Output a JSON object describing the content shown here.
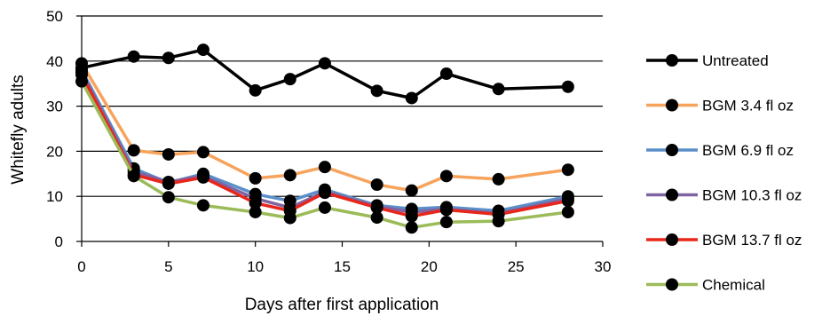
{
  "chart_data": {
    "type": "line",
    "xlabel": "Days after first application",
    "ylabel": "Whitefly adults",
    "xlim": [
      0,
      30
    ],
    "ylim": [
      0,
      50
    ],
    "x_ticks": [
      0,
      5,
      10,
      15,
      20,
      25,
      30
    ],
    "y_ticks": [
      0,
      10,
      20,
      30,
      40,
      50
    ],
    "grid": "horizontal",
    "legend_position": "right",
    "series": [
      {
        "name": "Untreated",
        "color": "#000000",
        "points": [
          [
            0,
            38.5
          ],
          [
            3,
            41
          ],
          [
            5,
            40.7
          ],
          [
            7,
            42.5
          ],
          [
            10,
            33.5
          ],
          [
            12,
            36
          ],
          [
            14,
            39.5
          ],
          [
            17,
            33.4
          ],
          [
            19,
            31.8
          ],
          [
            21,
            37.2
          ],
          [
            24,
            33.8
          ],
          [
            28,
            34.3
          ]
        ]
      },
      {
        "name": "BGM 3.4 fl oz",
        "color": "#F7A35C",
        "points": [
          [
            0,
            39.5
          ],
          [
            3,
            20.2
          ],
          [
            5,
            19.3
          ],
          [
            7,
            19.8
          ],
          [
            10,
            14
          ],
          [
            12,
            14.7
          ],
          [
            14,
            16.5
          ],
          [
            17,
            12.6
          ],
          [
            19,
            11.3
          ],
          [
            21,
            14.5
          ],
          [
            24,
            13.8
          ],
          [
            28,
            15.9
          ]
        ]
      },
      {
        "name": "BGM 6.9 fl oz",
        "color": "#5B8FC9",
        "points": [
          [
            0,
            38
          ],
          [
            3,
            16.2
          ],
          [
            5,
            13
          ],
          [
            7,
            15
          ],
          [
            10,
            10.5
          ],
          [
            12,
            9
          ],
          [
            14,
            11.5
          ],
          [
            17,
            8
          ],
          [
            19,
            7.2
          ],
          [
            21,
            7.6
          ],
          [
            24,
            6.8
          ],
          [
            28,
            10
          ]
        ]
      },
      {
        "name": "BGM 10.3 fl oz",
        "color": "#8064A2",
        "points": [
          [
            0,
            37.5
          ],
          [
            3,
            15.5
          ],
          [
            5,
            13.2
          ],
          [
            7,
            14.5
          ],
          [
            10,
            9.5
          ],
          [
            12,
            7.5
          ],
          [
            14,
            11
          ],
          [
            17,
            7.8
          ],
          [
            19,
            6.5
          ],
          [
            21,
            7.2
          ],
          [
            24,
            6.2
          ],
          [
            28,
            9.5
          ]
        ]
      },
      {
        "name": "BGM 13.7 fl oz",
        "color": "#E8261C",
        "points": [
          [
            0,
            37
          ],
          [
            3,
            14.8
          ],
          [
            5,
            12.8
          ],
          [
            7,
            14.2
          ],
          [
            10,
            8.5
          ],
          [
            12,
            6.8
          ],
          [
            14,
            10.8
          ],
          [
            17,
            7.5
          ],
          [
            19,
            5.6
          ],
          [
            21,
            7
          ],
          [
            24,
            6
          ],
          [
            28,
            9
          ]
        ]
      },
      {
        "name": "Chemical",
        "color": "#9BBB59",
        "points": [
          [
            0,
            35.5
          ],
          [
            3,
            14.5
          ],
          [
            5,
            9.8
          ],
          [
            7,
            8
          ],
          [
            10,
            6.5
          ],
          [
            12,
            5.2
          ],
          [
            14,
            7.5
          ],
          [
            17,
            5.3
          ],
          [
            19,
            3.1
          ],
          [
            21,
            4.3
          ],
          [
            24,
            4.5
          ],
          [
            28,
            6.5
          ]
        ]
      }
    ]
  }
}
